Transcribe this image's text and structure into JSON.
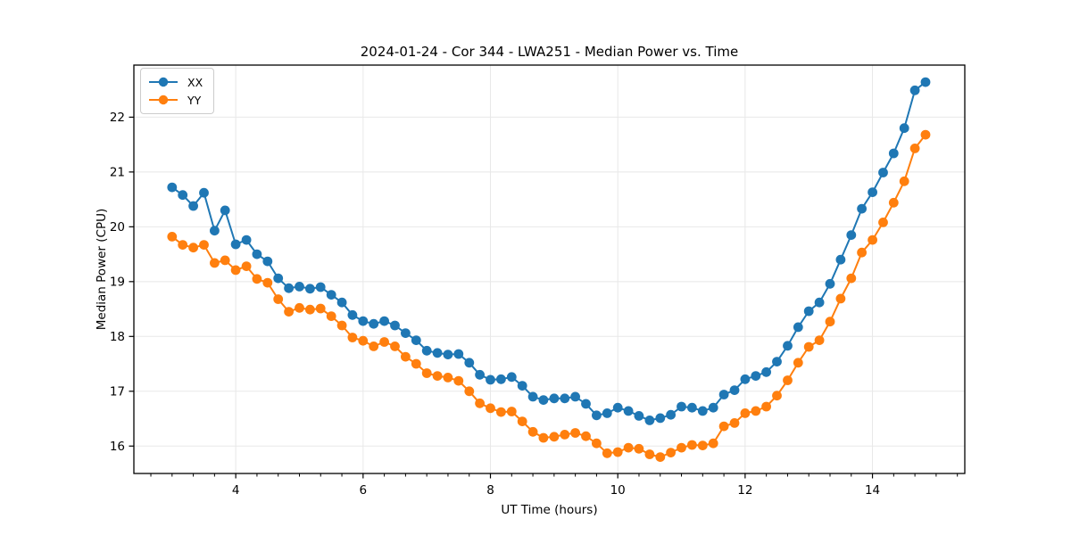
{
  "chart_data": {
    "type": "line",
    "title": "2024-01-24 - Cor 344 - LWA251 - Median Power vs. Time",
    "xlabel": "UT Time (hours)",
    "ylabel": "Median Power (CPU)",
    "grid": true,
    "legend_position": "upper left",
    "marker": "circle",
    "marker_size": 5.4,
    "line_width": 2,
    "xlim": [
      2.4,
      15.45
    ],
    "ylim": [
      15.5,
      22.95
    ],
    "xticks": [
      4,
      6,
      8,
      10,
      12,
      14
    ],
    "yticks": [
      16,
      17,
      18,
      19,
      20,
      21,
      22
    ],
    "x_minor_interval": 0.3333333,
    "x": [
      3.0,
      3.167,
      3.333,
      3.5,
      3.667,
      3.833,
      4.0,
      4.167,
      4.333,
      4.5,
      4.667,
      4.833,
      5.0,
      5.167,
      5.333,
      5.5,
      5.667,
      5.833,
      6.0,
      6.167,
      6.333,
      6.5,
      6.667,
      6.833,
      7.0,
      7.167,
      7.333,
      7.5,
      7.667,
      7.833,
      8.0,
      8.167,
      8.333,
      8.5,
      8.667,
      8.833,
      9.0,
      9.167,
      9.333,
      9.5,
      9.667,
      9.833,
      10.0,
      10.167,
      10.333,
      10.5,
      10.667,
      10.833,
      11.0,
      11.167,
      11.333,
      11.5,
      11.667,
      11.833,
      12.0,
      12.167,
      12.333,
      12.5,
      12.667,
      12.833,
      13.0,
      13.167,
      13.333,
      13.5,
      13.667,
      13.833,
      14.0,
      14.167,
      14.333,
      14.5,
      14.667,
      14.833
    ],
    "series": [
      {
        "name": "XX",
        "color": "#1f77b4",
        "values": [
          20.72,
          20.58,
          20.38,
          20.62,
          19.93,
          20.3,
          19.68,
          19.76,
          19.5,
          19.37,
          19.06,
          18.88,
          18.91,
          18.87,
          18.9,
          18.76,
          18.62,
          18.39,
          18.28,
          18.23,
          18.28,
          18.2,
          18.06,
          17.93,
          17.74,
          17.7,
          17.67,
          17.68,
          17.52,
          17.3,
          17.21,
          17.22,
          17.26,
          17.1,
          16.9,
          16.84,
          16.87,
          16.87,
          16.9,
          16.77,
          16.56,
          16.6,
          16.7,
          16.64,
          16.55,
          16.47,
          16.51,
          16.57,
          16.72,
          16.7,
          16.64,
          16.7,
          16.94,
          17.02,
          17.22,
          17.28,
          17.35,
          17.54,
          17.83,
          18.17,
          18.46,
          18.62,
          18.96,
          19.4,
          19.85,
          20.33,
          20.63,
          20.99,
          21.34,
          21.8,
          22.49,
          22.64
        ]
      },
      {
        "name": "YY",
        "color": "#ff7f0e",
        "values": [
          19.82,
          19.67,
          19.62,
          19.67,
          19.34,
          19.39,
          19.21,
          19.28,
          19.05,
          18.98,
          18.68,
          18.45,
          18.52,
          18.49,
          18.51,
          18.37,
          18.2,
          17.98,
          17.92,
          17.82,
          17.9,
          17.82,
          17.63,
          17.5,
          17.33,
          17.28,
          17.25,
          17.19,
          17.0,
          16.78,
          16.69,
          16.62,
          16.63,
          16.45,
          16.26,
          16.15,
          16.17,
          16.21,
          16.24,
          16.18,
          16.05,
          15.87,
          15.89,
          15.97,
          15.95,
          15.85,
          15.8,
          15.88,
          15.97,
          16.02,
          16.01,
          16.05,
          16.36,
          16.42,
          16.6,
          16.64,
          16.72,
          16.92,
          17.2,
          17.52,
          17.81,
          17.93,
          18.27,
          18.69,
          19.06,
          19.53,
          19.76,
          20.08,
          20.44,
          20.83,
          21.43,
          21.68
        ]
      }
    ],
    "style": {
      "grid_color": "#e8e8e8",
      "spine_color": "#000000",
      "tick_color": "#000000",
      "text_color": "#000000",
      "background": "#ffffff"
    }
  }
}
